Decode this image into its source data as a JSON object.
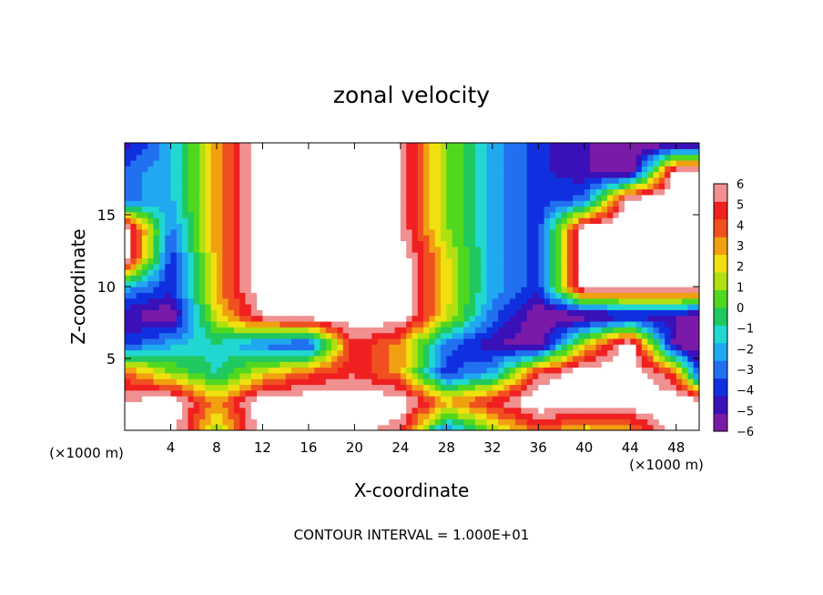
{
  "chart_data": {
    "type": "heatmap",
    "title": "zonal velocity",
    "xlabel": "X-coordinate",
    "ylabel": "Z-coordinate",
    "x_unit_label": "(×1000 m)",
    "footer": "CONTOUR INTERVAL = 1.000E+01",
    "xlim": [
      0,
      50
    ],
    "ylim": [
      0,
      20
    ],
    "x_ticks": [
      "4",
      "8",
      "12",
      "16",
      "20",
      "24",
      "28",
      "32",
      "36",
      "40",
      "44",
      "48"
    ],
    "x_tick_values": [
      4,
      8,
      12,
      16,
      20,
      24,
      28,
      32,
      36,
      40,
      44,
      48
    ],
    "y_ticks": [
      "5",
      "10",
      "15"
    ],
    "y_tick_values": [
      5,
      10,
      15
    ],
    "colorbar": {
      "ticks": [
        "6",
        "5",
        "4",
        "3",
        "2",
        "1",
        "0",
        "−1",
        "−2",
        "−3",
        "−4",
        "−5",
        "−6"
      ],
      "range": [
        -6,
        6
      ],
      "colors": [
        "#7a1aa8",
        "#3a10b8",
        "#1030e0",
        "#2070f0",
        "#20a8f0",
        "#20d8d0",
        "#20c860",
        "#50d820",
        "#b0e010",
        "#f0e010",
        "#f0a010",
        "#f05020",
        "#f02020",
        "#f09090"
      ]
    },
    "grid_x": [
      0,
      4,
      8,
      12,
      16,
      20,
      24,
      28,
      32,
      36,
      40,
      44,
      48,
      50
    ],
    "grid_z": [
      0,
      2,
      4,
      6,
      8,
      10,
      12,
      14,
      16,
      18,
      20
    ],
    "values": [
      [
        6,
        7,
        1,
        7,
        7,
        7,
        5,
        -3,
        1,
        4,
        2,
        3,
        7,
        7
      ],
      [
        6,
        7,
        3,
        7,
        7,
        7,
        7,
        3,
        5,
        7,
        7,
        7,
        7,
        7
      ],
      [
        4,
        1,
        -1,
        2,
        4,
        5,
        3,
        -4,
        -2,
        5,
        7,
        7,
        4,
        -4
      ],
      [
        -4,
        -2,
        -1,
        -3,
        -4,
        5,
        3,
        -3,
        -5,
        -6,
        2,
        7,
        -6,
        -6
      ],
      [
        -5,
        -6,
        2,
        6,
        7,
        7,
        7,
        2,
        -3,
        -6,
        -6,
        -5,
        -5,
        -6
      ],
      [
        -2,
        -4,
        3,
        7,
        7,
        7,
        7,
        2,
        -2,
        -4,
        7,
        7,
        7,
        7
      ],
      [
        7,
        -4,
        3,
        7,
        7,
        7,
        7,
        2,
        -2,
        -4,
        7,
        7,
        7,
        7
      ],
      [
        7,
        -3,
        3,
        7,
        7,
        7,
        6,
        1,
        -2,
        -4,
        7,
        7,
        7,
        7
      ],
      [
        -3,
        -2,
        3,
        7,
        7,
        7,
        6,
        1,
        -2,
        -4,
        -3,
        7,
        7,
        7
      ],
      [
        -3,
        -2,
        3,
        7,
        7,
        7,
        6,
        1,
        -2,
        -4,
        -5,
        -6,
        7,
        7
      ],
      [
        -5,
        -2,
        3,
        7,
        7,
        7,
        6,
        1,
        -2,
        -4,
        -5,
        -6,
        -6,
        -6
      ]
    ]
  }
}
